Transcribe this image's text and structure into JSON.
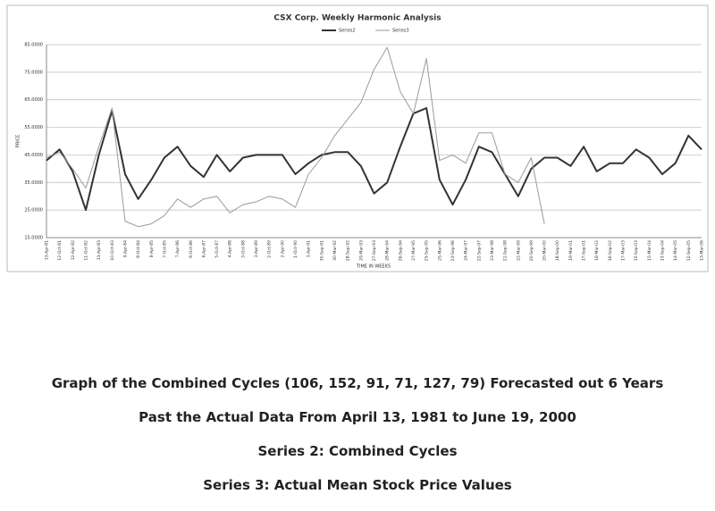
{
  "chart_data": {
    "type": "line",
    "title": "CSX Corp. Weekly Harmonic Analysis",
    "x_label": "TIME IN WEEKS",
    "y_label": "PRICE",
    "categories": [
      "13-Apr-81",
      "12-Oct-81",
      "12-Apr-82",
      "11-Oct-82",
      "11-Apr-83",
      "10-Oct-83",
      "9-Apr-84",
      "8-Oct-84",
      "8-Apr-85",
      "7-Oct-85",
      "7-Apr-86",
      "6-Oct-86",
      "6-Apr-87",
      "5-Oct-87",
      "4-Apr-88",
      "3-Oct-88",
      "3-Apr-89",
      "2-Oct-89",
      "2-Apr-90",
      "1-Oct-90",
      "1-Apr-91",
      "30-Sep-91",
      "30-Mar-92",
      "28-Sep-92",
      "29-Mar-93",
      "27-Sep-93",
      "28-Mar-94",
      "26-Sep-94",
      "27-Mar-95",
      "25-Sep-95",
      "25-Mar-96",
      "23-Sep-96",
      "24-Mar-97",
      "22-Sep-97",
      "23-Mar-98",
      "21-Sep-98",
      "22-Mar-99",
      "20-Sep-99",
      "20-Mar-00",
      "18-Sep-00",
      "19-Mar-01",
      "17-Sep-01",
      "18-Mar-02",
      "16-Sep-02",
      "17-Mar-03",
      "15-Sep-03",
      "15-Mar-04",
      "13-Sep-04",
      "14-Mar-05",
      "12-Sep-05",
      "13-Mar-06"
    ],
    "series": [
      {
        "name": "Series2",
        "color": "#333333",
        "width": 2,
        "values": [
          43,
          47,
          39,
          25,
          45,
          61,
          38,
          29,
          36,
          44,
          48,
          41,
          37,
          45,
          39,
          44,
          45,
          45,
          45,
          38,
          42,
          45,
          46,
          46,
          41,
          31,
          35,
          48,
          60,
          62,
          36,
          27,
          36,
          48,
          46,
          38,
          30,
          40,
          44,
          44,
          41,
          48,
          39,
          42,
          42,
          47,
          44,
          38,
          42,
          52,
          47
        ]
      },
      {
        "name": "Series3",
        "color": "#9a9a9a",
        "width": 1,
        "values": [
          44,
          46,
          40,
          33,
          48,
          62,
          21,
          19,
          20,
          23,
          29,
          26,
          29,
          30,
          24,
          27,
          28,
          30,
          29,
          26,
          38,
          44,
          52,
          58,
          64,
          76,
          84,
          68,
          60,
          80,
          43,
          45,
          42,
          53,
          53,
          38,
          35,
          44,
          20,
          null,
          null,
          null,
          null,
          null,
          null,
          null,
          null,
          null,
          null,
          null,
          null
        ]
      }
    ],
    "ylim": [
      15,
      85
    ],
    "yticks": [
      {
        "value": 15,
        "label": "15.0000"
      },
      {
        "value": 25,
        "label": "25.0000"
      },
      {
        "value": 35,
        "label": "35.0000"
      },
      {
        "value": 45,
        "label": "45.0000"
      },
      {
        "value": 55,
        "label": "55.0000"
      },
      {
        "value": 65,
        "label": "65.0000"
      },
      {
        "value": 75,
        "label": "75.0000"
      },
      {
        "value": 85,
        "label": "85.0000"
      }
    ],
    "grid": true,
    "legend": "top"
  },
  "captions": [
    "Graph of the Combined Cycles (106, 152, 91, 71, 127, 79) Forecasted out 6 Years",
    "Past the Actual Data From April 13, 1981 to June 19, 2000",
    "Series 2: Combined Cycles",
    "Series 3: Actual Mean Stock Price Values"
  ]
}
